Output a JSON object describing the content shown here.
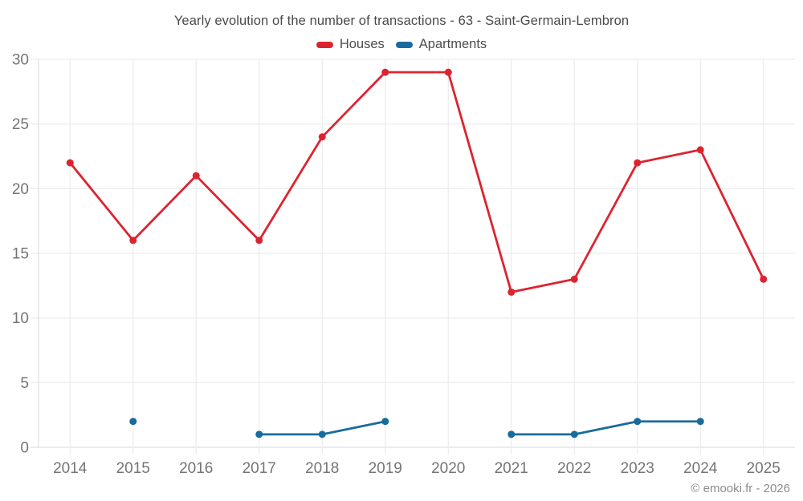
{
  "title": "Yearly evolution of the number of transactions - 63 - Saint-Germain-Lembron",
  "footer": "© emooki.fr - 2026",
  "colors": {
    "houses": "#dc2430",
    "apartments": "#1a6b9d",
    "grid": "#ededed",
    "axis": "#e0e0e0",
    "tick_label": "#757575"
  },
  "chart_data": {
    "type": "line",
    "title": "Yearly evolution of the number of transactions - 63 - Saint-Germain-Lembron",
    "categories": [
      "2014",
      "2015",
      "2016",
      "2017",
      "2018",
      "2019",
      "2020",
      "2021",
      "2022",
      "2023",
      "2024",
      "2025"
    ],
    "series": [
      {
        "name": "Houses",
        "color": "#dc2430",
        "values": [
          22,
          16,
          21,
          16,
          24,
          29,
          29,
          12,
          13,
          22,
          23,
          13
        ]
      },
      {
        "name": "Apartments",
        "color": "#1a6b9d",
        "values": [
          null,
          2,
          null,
          1,
          1,
          2,
          null,
          1,
          1,
          2,
          2,
          null
        ]
      }
    ],
    "xlabel": "",
    "ylabel": "",
    "ylim": [
      0,
      30
    ],
    "yticks": [
      0,
      5,
      10,
      15,
      20,
      25,
      30
    ],
    "grid": true,
    "legend_position": "top"
  }
}
